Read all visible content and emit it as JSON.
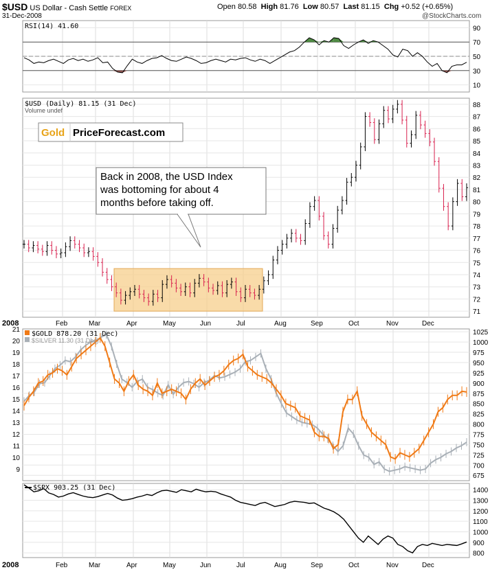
{
  "header": {
    "symbol": "$USD",
    "description": "US Dollar - Cash Settle",
    "market": "FOREX",
    "date": "31-Dec-2008",
    "ohlc": {
      "open_label": "Open",
      "open": "80.58",
      "high_label": "High",
      "high": "81.76",
      "low_label": "Low",
      "low": "80.57",
      "last_label": "Last",
      "last": "81.15",
      "chg_label": "Chg",
      "chg": "+0.52 (+0.65%)"
    },
    "source": "@StockCharts.com"
  },
  "colors": {
    "usd_up": "#000000",
    "usd_down": "#d81f4d",
    "gold": "#f07a16",
    "silver": "#a9b0b7",
    "rsi_overbought_fill": "#4f8a43",
    "rsi_oversold_fill": "#8f534e",
    "highlight": "#f7cf8c"
  },
  "logo": {
    "part1": "Gold",
    "part2": "PriceForecast.com"
  },
  "callout": {
    "lines": [
      "Back in 2008, the USD Index",
      "was bottoming for about 4",
      "months before taking off."
    ]
  },
  "chart_data": [
    {
      "type": "line",
      "name": "RSI panel",
      "legend": "RSI(14) 41.60",
      "series": [
        {
          "name": "RSI(14)",
          "values": [
            48,
            45,
            40,
            42,
            41,
            44,
            46,
            43,
            40,
            45,
            47,
            44,
            46,
            43,
            45,
            48,
            41,
            42,
            33,
            28,
            27,
            37,
            46,
            42,
            40,
            44,
            47,
            48,
            51,
            47,
            44,
            43,
            46,
            49,
            47,
            44,
            40,
            41,
            44,
            46,
            44,
            42,
            46,
            45,
            47,
            48,
            45,
            43,
            46,
            44,
            40,
            44,
            48,
            52,
            56,
            58,
            63,
            70,
            76,
            73,
            66,
            72,
            70,
            76,
            75,
            65,
            61,
            66,
            70,
            73,
            68,
            72,
            70,
            65,
            60,
            52,
            49,
            60,
            58,
            50,
            55,
            50,
            42,
            36,
            40,
            30,
            27,
            36,
            38,
            38,
            41.6
          ]
        }
      ],
      "ylim": [
        0,
        100
      ],
      "y_ticks": [
        10,
        30,
        50,
        70,
        90
      ],
      "reference_lines": [
        30,
        50,
        70
      ]
    },
    {
      "type": "bar",
      "name": "$USD (Daily) 81.15 (31 Dec)",
      "legend": [
        "$USD (Daily) 81.15 (31 Dec)",
        "Volume undef"
      ],
      "series": [
        {
          "name": "$USD (Daily)",
          "values": [
            76.5,
            76.2,
            76.4,
            76.1,
            75.9,
            76.4,
            76.0,
            75.7,
            75.8,
            76.3,
            76.8,
            76.5,
            76.2,
            75.8,
            75.9,
            75.5,
            75.0,
            74.2,
            73.6,
            73.0,
            72.5,
            71.9,
            72.3,
            72.6,
            72.8,
            72.4,
            72.1,
            71.8,
            72.4,
            72.1,
            73.2,
            73.6,
            73.3,
            72.9,
            72.6,
            73.0,
            72.5,
            73.3,
            73.7,
            73.4,
            72.9,
            72.7,
            73.1,
            72.5,
            73.2,
            73.4,
            72.6,
            72.1,
            72.8,
            72.5,
            72.3,
            72.8,
            73.5,
            74.0,
            75.2,
            76.0,
            76.5,
            77.0,
            77.4,
            77.0,
            76.8,
            78.2,
            79.6,
            80.1,
            78.8,
            77.2,
            76.5,
            77.8,
            79.3,
            80.1,
            81.6,
            82.0,
            83.0,
            84.5,
            87.0,
            86.5,
            85.1,
            86.4,
            87.5,
            86.8,
            87.6,
            88.0,
            86.7,
            84.8,
            85.5,
            87.1,
            86.3,
            85.6,
            84.9,
            83.3,
            81.1,
            79.6,
            78.0,
            80.0,
            81.5,
            80.4,
            81.15
          ]
        }
      ],
      "ylim": [
        70.5,
        88.5
      ],
      "y_ticks": [
        71,
        72,
        73,
        74,
        75,
        76,
        77,
        78,
        79,
        80,
        81,
        82,
        83,
        84,
        85,
        86,
        87,
        88
      ],
      "highlight": {
        "x_range": [
          "Mar",
          "Jul"
        ],
        "y_range": [
          71,
          74.5
        ]
      }
    },
    {
      "type": "line",
      "name": "Gold and Silver",
      "legend": [
        "$GOLD 878.20 (31 Dec)",
        "$SILVER 11.30 (31 Dec)"
      ],
      "series": [
        {
          "name": "$GOLD",
          "values": [
            845,
            865,
            880,
            900,
            905,
            920,
            925,
            935,
            930,
            920,
            940,
            960,
            970,
            980,
            990,
            1000,
            1010,
            990,
            950,
            910,
            900,
            880,
            905,
            920,
            895,
            885,
            880,
            870,
            900,
            875,
            880,
            885,
            880,
            875,
            860,
            885,
            900,
            910,
            895,
            905,
            915,
            920,
            930,
            945,
            955,
            960,
            970,
            940,
            930,
            920,
            915,
            910,
            900,
            885,
            870,
            850,
            845,
            840,
            820,
            815,
            810,
            780,
            770,
            770,
            765,
            740,
            750,
            830,
            860,
            860,
            880,
            820,
            800,
            780,
            770,
            760,
            750,
            720,
            715,
            730,
            725,
            720,
            730,
            740,
            760,
            780,
            800,
            830,
            840,
            860,
            870,
            870,
            880,
            878.2
          ]
        },
        {
          "name": "$SILVER",
          "values": [
            14.8,
            15.3,
            15.6,
            16.3,
            16.4,
            17.0,
            17.6,
            17.9,
            18.3,
            18.2,
            18.6,
            19.2,
            19.6,
            19.9,
            20.0,
            20.3,
            20.5,
            19.5,
            18.0,
            16.7,
            16.4,
            16.0,
            16.5,
            16.7,
            16.0,
            15.8,
            15.5,
            15.3,
            16.2,
            15.4,
            16.0,
            16.4,
            16.5,
            16.3,
            16.0,
            16.4,
            16.6,
            17.0,
            16.8,
            16.9,
            17.1,
            17.3,
            17.6,
            18.2,
            18.3,
            18.6,
            18.9,
            17.6,
            16.7,
            15.5,
            14.6,
            13.8,
            13.5,
            13.2,
            13.0,
            12.9,
            12.8,
            12.5,
            12.0,
            11.6,
            11.0,
            10.5,
            11.0,
            12.5,
            12.0,
            11.0,
            10.2,
            10.0,
            9.4,
            9.6,
            9.0,
            8.8,
            8.9,
            9.0,
            9.2,
            9.1,
            9.0,
            8.9,
            9.0,
            9.5,
            9.8,
            10.0,
            10.3,
            10.5,
            10.8,
            11.0,
            11.3
          ]
        }
      ],
      "y_left_ticks": [
        9,
        10,
        11,
        12,
        13,
        14,
        15,
        16,
        17,
        18,
        19,
        20,
        21
      ],
      "y_right_ticks": [
        675,
        700,
        725,
        750,
        775,
        800,
        825,
        850,
        875,
        900,
        925,
        950,
        975,
        1000,
        1025
      ],
      "ylim_silver": [
        8,
        21
      ],
      "ylim_gold": [
        662,
        1032
      ]
    },
    {
      "type": "line",
      "name": "$SPX",
      "legend": "$SPX 903.25 (31 Dec)",
      "series": [
        {
          "name": "$SPX",
          "values": [
            1447,
            1416,
            1380,
            1390,
            1411,
            1370,
            1355,
            1330,
            1340,
            1360,
            1372,
            1355,
            1340,
            1330,
            1325,
            1335,
            1350,
            1365,
            1350,
            1320,
            1300,
            1305,
            1315,
            1330,
            1340,
            1355,
            1345,
            1370,
            1390,
            1395,
            1385,
            1375,
            1400,
            1390,
            1380,
            1405,
            1390,
            1380,
            1385,
            1380,
            1360,
            1345,
            1330,
            1300,
            1280,
            1270,
            1260,
            1250,
            1270,
            1280,
            1260,
            1240,
            1250,
            1260,
            1280,
            1290,
            1285,
            1280,
            1270,
            1275,
            1250,
            1225,
            1210,
            1190,
            1160,
            1120,
            1060,
            1000,
            940,
            900,
            960,
            920,
            880,
            930,
            960,
            940,
            880,
            860,
            820,
            800,
            860,
            880,
            870,
            890,
            880,
            870,
            880,
            875,
            870,
            885,
            903.25
          ]
        }
      ],
      "y_ticks": [
        800,
        900,
        1000,
        1100,
        1200,
        1300,
        1400
      ],
      "ylim": [
        755,
        1460
      ]
    }
  ],
  "x_axis": {
    "year": "2008",
    "months": [
      "Feb",
      "Mar",
      "Apr",
      "May",
      "Jun",
      "Jul",
      "Aug",
      "Sep",
      "Oct",
      "Nov",
      "Dec"
    ]
  }
}
